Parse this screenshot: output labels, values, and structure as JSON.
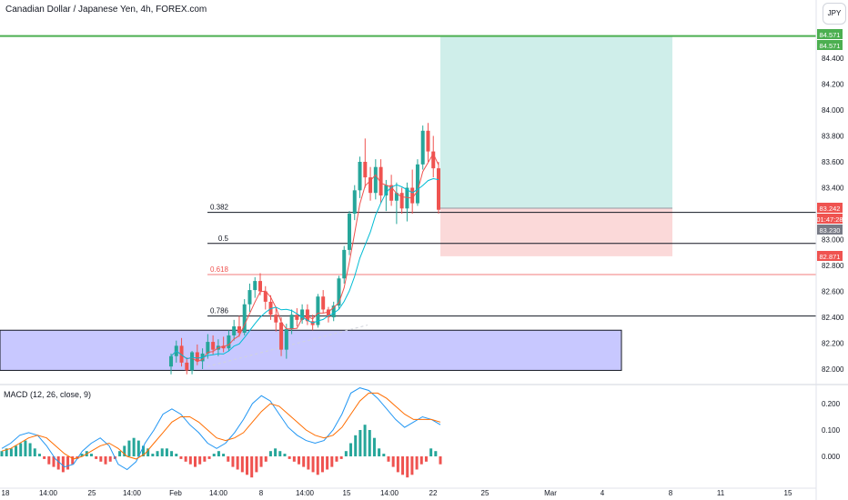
{
  "header": {
    "title": "Canadian Dollar / Japanese Yen, 4h, FOREX.com",
    "currency_badge": "JPY"
  },
  "macd": {
    "title": "MACD (12, 26, close, 9)",
    "axis": [
      "0.200",
      "0.100",
      "0.000"
    ]
  },
  "colors": {
    "up": "#26a69a",
    "down": "#ef5350",
    "macd_line": "#2196f3",
    "signal_line": "#ff6d00",
    "target_line": "#4caf50",
    "zone_fill": "#c8c8ff",
    "profit_fill": "#cfeeea",
    "loss_fill": "#fbd9d9"
  },
  "chart_data": {
    "type": "candlestick",
    "title": "Canadian Dollar / Japanese Yen, 4h, FOREX.com",
    "y_ticks": [
      "84.400",
      "84.200",
      "84.000",
      "83.800",
      "83.600",
      "83.400",
      "83.000",
      "82.800",
      "82.600",
      "82.400",
      "82.200",
      "82.000"
    ],
    "x_ticks": [
      "18",
      "14:00",
      "25",
      "14:00",
      "Feb",
      "14:00",
      "8",
      "14:00",
      "15",
      "14:00",
      "22",
      "25",
      "Mar",
      "4",
      "8",
      "11",
      "15"
    ],
    "ylim": [
      81.95,
      84.62
    ],
    "fib_levels": [
      {
        "label": "0.382",
        "value": 83.21
      },
      {
        "label": "0.5",
        "value": 82.97
      },
      {
        "label": "0.618",
        "value": 82.73
      },
      {
        "label": "0.786",
        "value": 82.41
      }
    ],
    "price_tags": [
      {
        "text": "84.571",
        "kind": "target"
      },
      {
        "text": "84.571",
        "kind": "target"
      },
      {
        "text": "83.242",
        "kind": "down"
      },
      {
        "text": "01:47:28",
        "kind": "down"
      },
      {
        "text": "83.230",
        "kind": "gray"
      },
      {
        "text": "82.871",
        "kind": "down"
      }
    ],
    "position": {
      "entry": 83.242,
      "target": 84.571,
      "stop": 82.871
    },
    "demand_zone": {
      "low": 81.99,
      "high": 82.3
    },
    "candles": [
      [
        82.02,
        82.12,
        81.96,
        82.1
      ],
      [
        82.1,
        82.22,
        82.05,
        82.18
      ],
      [
        82.18,
        82.24,
        82.02,
        82.05
      ],
      [
        82.05,
        82.09,
        81.96,
        81.99
      ],
      [
        81.99,
        82.14,
        81.96,
        82.13
      ],
      [
        82.13,
        82.19,
        82.03,
        82.06
      ],
      [
        82.06,
        82.16,
        82.0,
        82.12
      ],
      [
        82.12,
        82.27,
        82.08,
        82.21
      ],
      [
        82.21,
        82.26,
        82.11,
        82.15
      ],
      [
        82.15,
        82.23,
        82.1,
        82.18
      ],
      [
        82.18,
        82.25,
        82.13,
        82.16
      ],
      [
        82.16,
        82.3,
        82.14,
        82.26
      ],
      [
        82.26,
        82.38,
        82.22,
        82.33
      ],
      [
        82.33,
        82.41,
        82.25,
        82.28
      ],
      [
        82.28,
        82.54,
        82.26,
        82.5
      ],
      [
        82.5,
        82.66,
        82.44,
        82.61
      ],
      [
        82.61,
        82.71,
        82.55,
        82.68
      ],
      [
        82.68,
        82.74,
        82.57,
        82.6
      ],
      [
        82.6,
        82.64,
        82.46,
        82.52
      ],
      [
        82.52,
        82.57,
        82.38,
        82.42
      ],
      [
        82.42,
        82.48,
        82.29,
        82.36
      ],
      [
        82.36,
        82.4,
        82.1,
        82.15
      ],
      [
        82.15,
        82.35,
        82.08,
        82.31
      ],
      [
        82.31,
        82.46,
        82.27,
        82.42
      ],
      [
        82.42,
        82.47,
        82.33,
        82.38
      ],
      [
        82.38,
        82.5,
        82.35,
        82.46
      ],
      [
        82.46,
        82.5,
        82.34,
        82.37
      ],
      [
        82.37,
        82.42,
        82.3,
        82.34
      ],
      [
        82.34,
        82.58,
        82.32,
        82.56
      ],
      [
        82.56,
        82.61,
        82.43,
        82.46
      ],
      [
        82.46,
        82.48,
        82.36,
        82.4
      ],
      [
        82.4,
        82.52,
        82.37,
        82.49
      ],
      [
        82.49,
        82.72,
        82.46,
        82.7
      ],
      [
        82.7,
        82.95,
        82.66,
        82.92
      ],
      [
        82.92,
        83.22,
        82.88,
        83.2
      ],
      [
        83.2,
        83.42,
        83.15,
        83.38
      ],
      [
        83.38,
        83.64,
        83.32,
        83.6
      ],
      [
        83.6,
        83.78,
        83.4,
        83.48
      ],
      [
        83.48,
        83.56,
        83.3,
        83.36
      ],
      [
        83.36,
        83.62,
        83.31,
        83.56
      ],
      [
        83.56,
        83.62,
        83.28,
        83.34
      ],
      [
        83.34,
        83.46,
        83.22,
        83.42
      ],
      [
        83.42,
        83.5,
        83.26,
        83.3
      ],
      [
        83.3,
        83.44,
        83.12,
        83.36
      ],
      [
        83.36,
        83.4,
        83.2,
        83.24
      ],
      [
        83.24,
        83.44,
        83.14,
        83.4
      ],
      [
        83.4,
        83.54,
        83.2,
        83.28
      ],
      [
        83.28,
        83.62,
        83.26,
        83.58
      ],
      [
        83.58,
        83.88,
        83.54,
        83.84
      ],
      [
        83.84,
        83.9,
        83.6,
        83.68
      ],
      [
        83.68,
        83.8,
        83.48,
        83.55
      ],
      [
        83.55,
        83.6,
        83.2,
        83.23
      ]
    ],
    "macd_hist": [
      0.02,
      0.03,
      0.03,
      0.04,
      0.05,
      0.06,
      0.05,
      0.03,
      0.01,
      -0.01,
      -0.03,
      -0.04,
      -0.05,
      -0.06,
      -0.05,
      -0.03,
      -0.01,
      0.01,
      0.02,
      0.01,
      -0.01,
      -0.02,
      -0.03,
      -0.02,
      -0.01,
      0.02,
      0.04,
      0.06,
      0.07,
      0.06,
      0.04,
      0.03,
      0.01,
      0.02,
      0.03,
      0.03,
      0.02,
      0.01,
      -0.01,
      -0.02,
      -0.03,
      -0.04,
      -0.03,
      -0.02,
      -0.01,
      0.01,
      0.02,
      0.01,
      -0.02,
      -0.04,
      -0.05,
      -0.06,
      -0.07,
      -0.08,
      -0.06,
      -0.04,
      -0.02,
      0.02,
      0.03,
      0.02,
      0.01,
      -0.01,
      -0.02,
      -0.03,
      -0.04,
      -0.05,
      -0.06,
      -0.07,
      -0.06,
      -0.05,
      -0.04,
      -0.02,
      -0.01,
      0.02,
      0.05,
      0.08,
      0.1,
      0.12,
      0.1,
      0.07,
      0.03,
      0.01,
      -0.02,
      -0.04,
      -0.06,
      -0.07,
      -0.08,
      -0.07,
      -0.05,
      -0.03,
      -0.02,
      0.03,
      0.02,
      -0.03
    ],
    "macd_line": [
      0.03,
      0.05,
      0.08,
      0.09,
      0.08,
      0.04,
      -0.01,
      -0.04,
      -0.03,
      0.02,
      0.05,
      0.07,
      0.04,
      -0.03,
      -0.05,
      -0.02,
      0.05,
      0.1,
      0.16,
      0.18,
      0.16,
      0.12,
      0.09,
      0.05,
      0.03,
      0.05,
      0.09,
      0.14,
      0.2,
      0.23,
      0.21,
      0.16,
      0.11,
      0.08,
      0.06,
      0.05,
      0.06,
      0.1,
      0.16,
      0.24,
      0.26,
      0.25,
      0.22,
      0.18,
      0.14,
      0.11,
      0.13,
      0.15,
      0.14,
      0.12
    ],
    "signal_line": [
      0.02,
      0.03,
      0.05,
      0.07,
      0.08,
      0.07,
      0.04,
      0.01,
      -0.01,
      0.0,
      0.02,
      0.04,
      0.05,
      0.03,
      0.0,
      -0.01,
      0.01,
      0.05,
      0.09,
      0.13,
      0.15,
      0.15,
      0.13,
      0.1,
      0.07,
      0.06,
      0.07,
      0.09,
      0.13,
      0.17,
      0.2,
      0.19,
      0.16,
      0.13,
      0.1,
      0.08,
      0.07,
      0.08,
      0.11,
      0.16,
      0.21,
      0.24,
      0.24,
      0.22,
      0.19,
      0.16,
      0.14,
      0.14,
      0.14,
      0.13
    ]
  }
}
